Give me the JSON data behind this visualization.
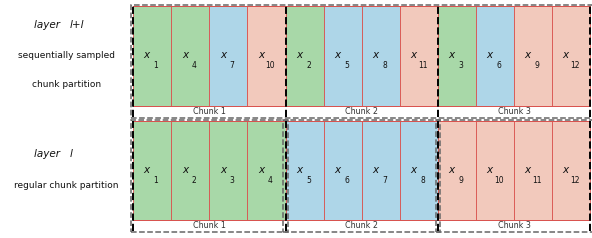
{
  "fig_width": 5.92,
  "fig_height": 2.38,
  "dpi": 100,
  "colors": {
    "green": "#a8d8a8",
    "blue": "#aed6e8",
    "pink": "#f2c9bc",
    "red_border": "#d9534f",
    "dashed_border": "#666666",
    "text_dark": "#111111",
    "bg": "#ffffff"
  },
  "top_row": {
    "cells": [
      {
        "sub": "1",
        "color": "green"
      },
      {
        "sub": "4",
        "color": "green"
      },
      {
        "sub": "7",
        "color": "blue"
      },
      {
        "sub": "10",
        "color": "pink"
      },
      {
        "sub": "2",
        "color": "green"
      },
      {
        "sub": "5",
        "color": "blue"
      },
      {
        "sub": "8",
        "color": "blue"
      },
      {
        "sub": "11",
        "color": "pink"
      },
      {
        "sub": "3",
        "color": "green"
      },
      {
        "sub": "6",
        "color": "blue"
      },
      {
        "sub": "9",
        "color": "pink"
      },
      {
        "sub": "12",
        "color": "pink"
      }
    ],
    "chunk_labels": [
      "Chunk 1",
      "Chunk 2",
      "Chunk 3"
    ],
    "label_l1": "layer  ",
    "label_l1b": "l+l",
    "label_l2": "sequentially sampled",
    "label_l3": "chunk partition"
  },
  "bottom_row": {
    "cells": [
      {
        "sub": "1",
        "color": "green"
      },
      {
        "sub": "2",
        "color": "green"
      },
      {
        "sub": "3",
        "color": "green"
      },
      {
        "sub": "4",
        "color": "green"
      },
      {
        "sub": "5",
        "color": "blue"
      },
      {
        "sub": "6",
        "color": "blue"
      },
      {
        "sub": "7",
        "color": "blue"
      },
      {
        "sub": "8",
        "color": "blue"
      },
      {
        "sub": "9",
        "color": "pink"
      },
      {
        "sub": "10",
        "color": "pink"
      },
      {
        "sub": "11",
        "color": "pink"
      },
      {
        "sub": "12",
        "color": "pink"
      }
    ],
    "chunk_labels": [
      "Chunk 1",
      "Chunk 2",
      "Chunk 3"
    ],
    "label_l1": "layer  ",
    "label_l1b": "l",
    "label_l2": "regular chunk partition"
  }
}
